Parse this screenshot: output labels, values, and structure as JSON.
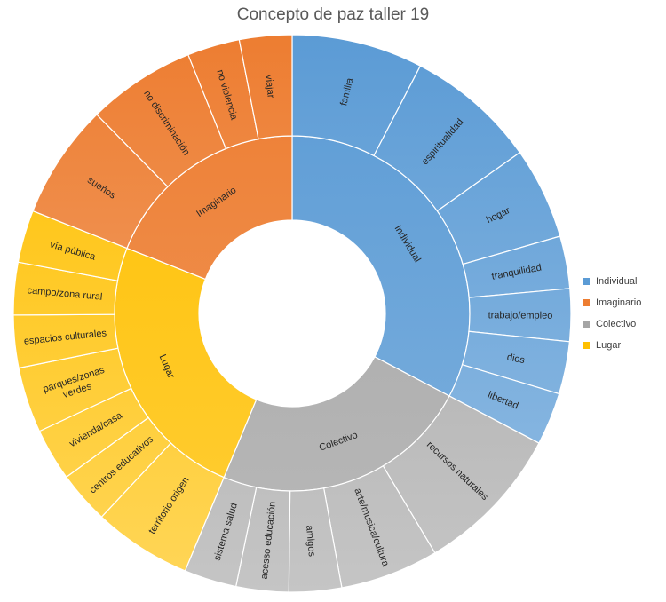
{
  "chart_data": {
    "type": "sunburst",
    "title": "Concepto de paz taller 19",
    "groups": [
      {
        "name": "Individual",
        "color": "#5b9bd5",
        "children": [
          {
            "name": "familia",
            "value": 4
          },
          {
            "name": "espiritualidad",
            "value": 4
          },
          {
            "name": "hogar",
            "value": 2.8
          },
          {
            "name": "tranquilidad",
            "value": 1.6
          },
          {
            "name": "trabajo/empleo",
            "value": 1.6
          },
          {
            "name": "dios",
            "value": 1.6
          },
          {
            "name": "libertad",
            "value": 1.6
          }
        ]
      },
      {
        "name": "Colectivo",
        "color": "#a5a5a5",
        "children": [
          {
            "name": "recursos naturales",
            "value": 4.6
          },
          {
            "name": "arte/musica/cultura",
            "value": 3
          },
          {
            "name": "amigos",
            "value": 1.6
          },
          {
            "name": "acesso educación",
            "value": 1.6
          },
          {
            "name": "sistema salud",
            "value": 1.6
          }
        ]
      },
      {
        "name": "Lugar",
        "color": "#ffc000",
        "children": [
          {
            "name": "territorio origen",
            "value": 3
          },
          {
            "name": "centros educativos",
            "value": 1.6
          },
          {
            "name": "vivienda/casa",
            "value": 1.6
          },
          {
            "name": "parques/zonas verdes",
            "value": 2
          },
          {
            "name": "espacios culturales",
            "value": 1.6
          },
          {
            "name": "campo/zona rural",
            "value": 1.6
          },
          {
            "name": "vía pública",
            "value": 1.6
          }
        ]
      },
      {
        "name": "Imaginario",
        "color": "#ed7d31",
        "children": [
          {
            "name": "sueños",
            "value": 3.5
          },
          {
            "name": "no discriminación",
            "value": 3.3
          },
          {
            "name": "no violencia",
            "value": 1.6
          },
          {
            "name": "viajar",
            "value": 1.6
          }
        ]
      }
    ],
    "legend": {
      "position": "right",
      "entries": [
        "Individual",
        "Imaginario",
        "Colectivo",
        "Lugar"
      ]
    }
  },
  "legend_colors": {
    "Individual": "#5b9bd5",
    "Imaginario": "#ed7d31",
    "Colectivo": "#a5a5a5",
    "Lugar": "#ffc000"
  }
}
